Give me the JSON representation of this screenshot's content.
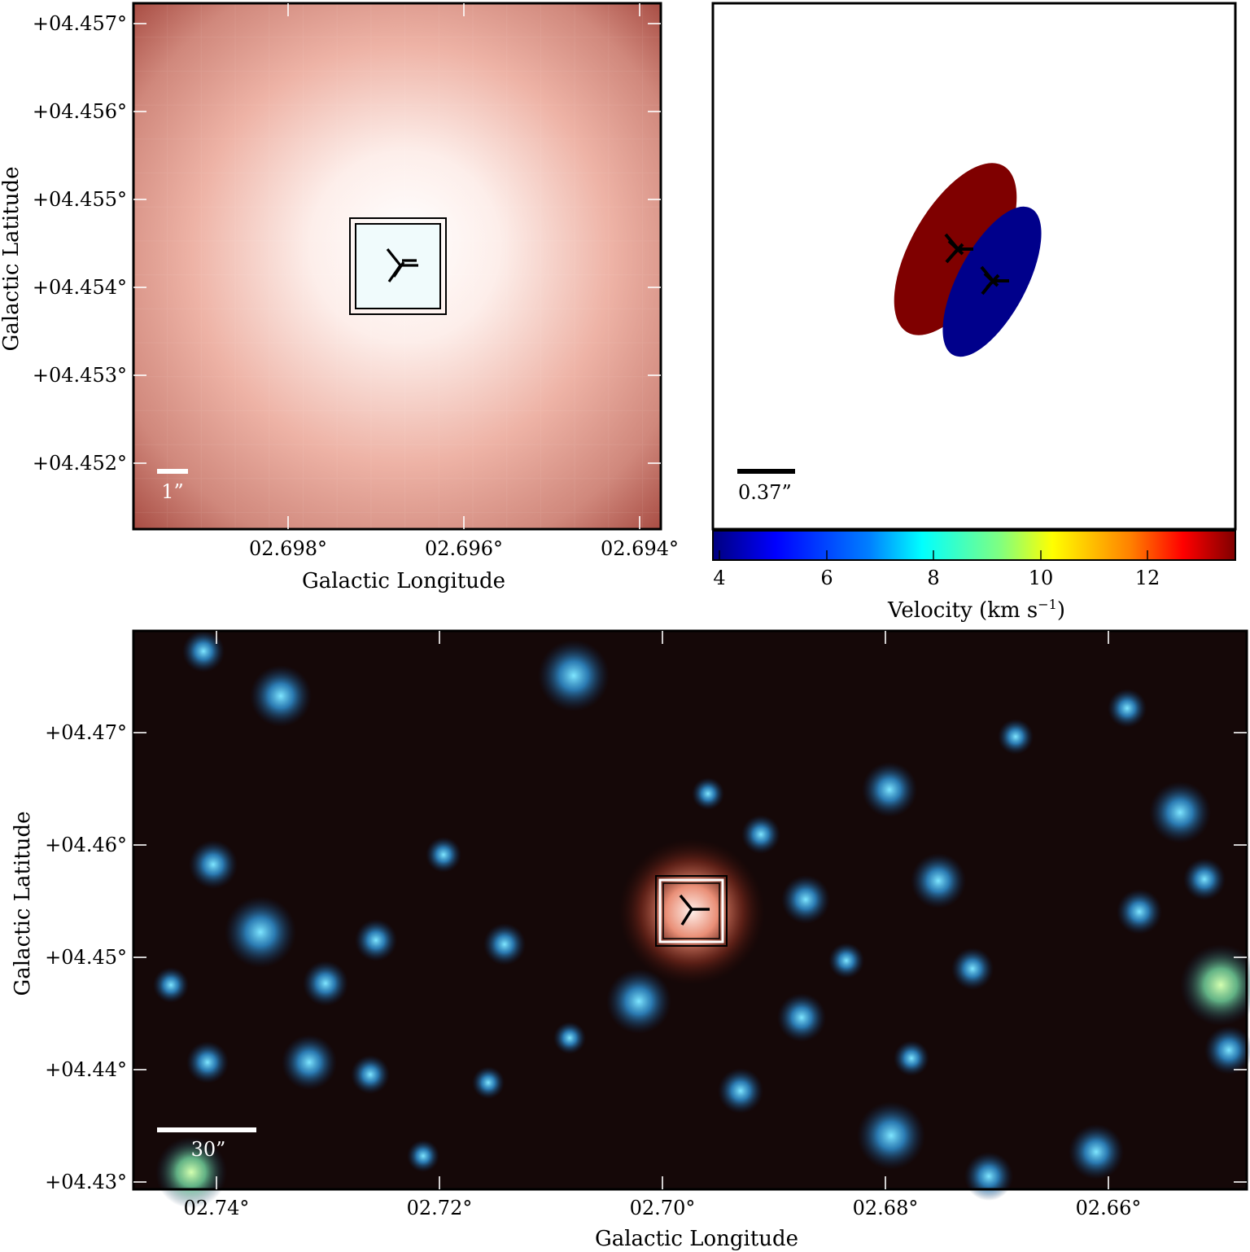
{
  "top_left_panel": {
    "y_ticks": [
      "+04.457°",
      "+04.456°",
      "+04.455°",
      "+04.454°",
      "+04.453°",
      "+04.452°"
    ],
    "x_ticks": [
      "02.698°",
      "02.696°",
      "02.694°"
    ],
    "xlabel": "Galactic Longitude",
    "ylabel": "Galactic Latitude",
    "scale_bar_label": "1”",
    "colors": {
      "edge": "#b8574d",
      "mid": "#e9a89b",
      "center": "#fdf6f4"
    }
  },
  "top_right_panel": {
    "scale_bar_label": "0.37”",
    "ellipse_colors": {
      "red": "#7f0000",
      "blue": "#00008b"
    },
    "colorbar": {
      "ticks": [
        "4",
        "6",
        "8",
        "10",
        "12"
      ],
      "label": "Velocity (km s",
      "label_superscript": "−1",
      "label_close": ")",
      "gradient": [
        "#00007f",
        "#0000ff",
        "#0080ff",
        "#00ffff",
        "#80ff80",
        "#ffff00",
        "#ff8000",
        "#ff0000",
        "#7f0000"
      ]
    }
  },
  "bottom_panel": {
    "y_ticks": [
      "+04.47°",
      "+04.46°",
      "+04.45°",
      "+04.44°",
      "+04.43°"
    ],
    "x_ticks": [
      "02.74°",
      "02.72°",
      "02.70°",
      "02.68°",
      "02.66°"
    ],
    "xlabel": "Galactic Longitude",
    "ylabel": "Galactic Latitude",
    "scale_bar_label": "30”",
    "colors": {
      "background": "#140808",
      "star": "#2f8fd0",
      "source": "#e7836a"
    }
  }
}
